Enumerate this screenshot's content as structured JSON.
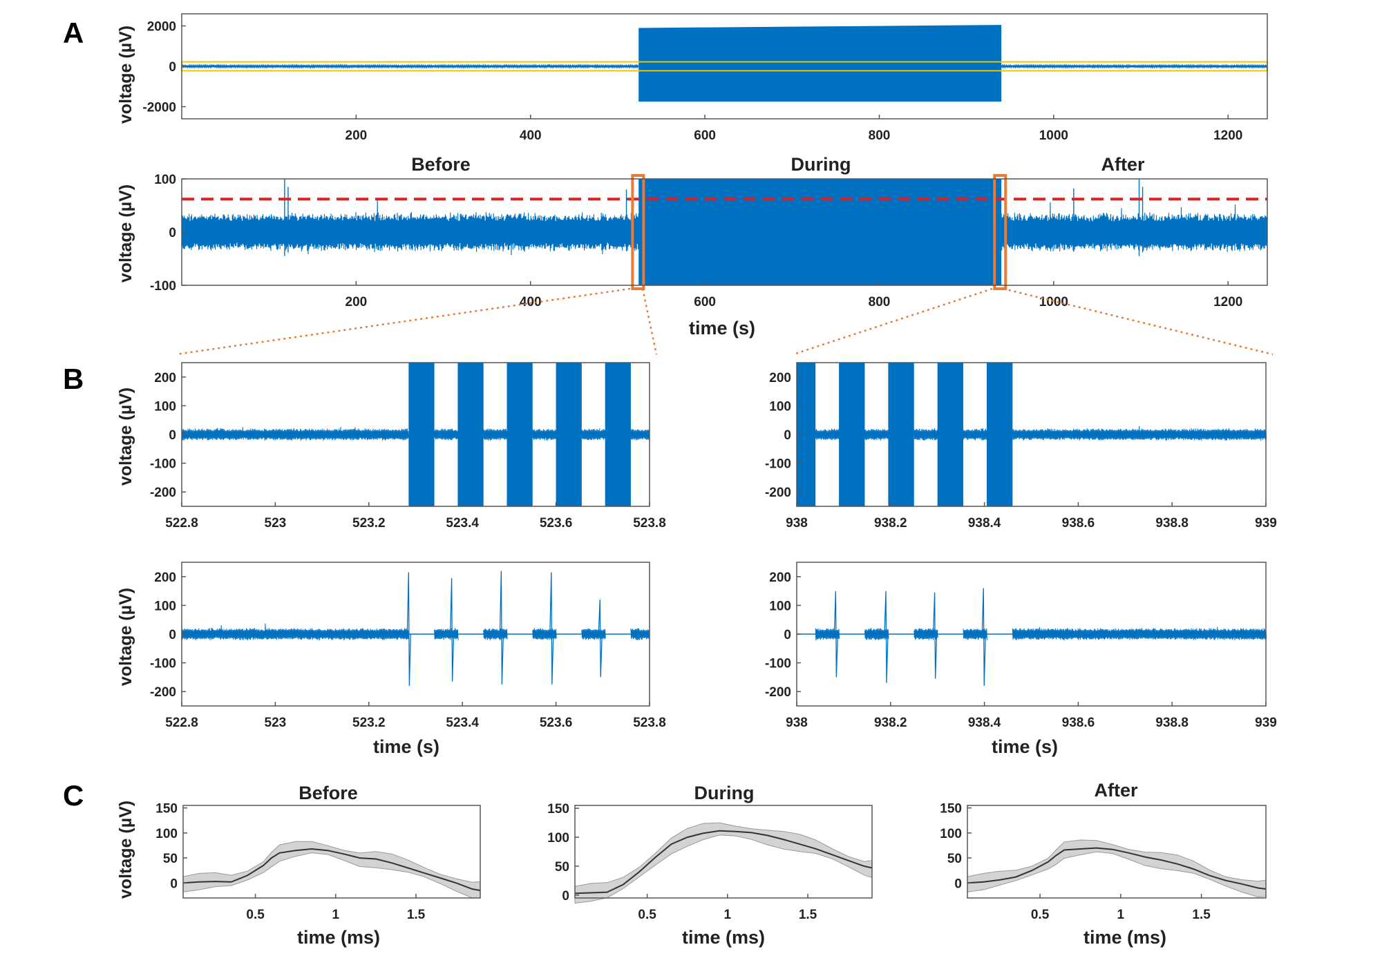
{
  "figure": {
    "panel_labels": [
      "A",
      "B",
      "C"
    ],
    "colors": {
      "signal": "#0070C0",
      "threshold": "#E02020",
      "zoom_box": "#E97B37",
      "yellow_box": "#F5C400",
      "mean_line": "#333333",
      "band": "#D3D3D3",
      "axes": "#555555"
    }
  },
  "chart_data": [
    {
      "id": "A1",
      "type": "line",
      "title": "",
      "xlabel": "",
      "ylabel": "voltage (µV)",
      "xlim": [
        0,
        1245
      ],
      "ylim": [
        -2600,
        2600
      ],
      "xticks": [
        200,
        400,
        600,
        800,
        1000,
        1200
      ],
      "yticks": [
        -2000,
        0,
        2000
      ],
      "yticklabels": [
        "-2000",
        "0",
        "2000"
      ],
      "segments": [
        {
          "name": "before",
          "x": [
            0,
            524
          ],
          "amplitude": 60
        },
        {
          "name": "during",
          "x": [
            524,
            940
          ],
          "y_low": -1750,
          "y_high_start": 1900,
          "y_high_end": 2050
        },
        {
          "name": "after",
          "x": [
            940,
            1245
          ],
          "amplitude": 60
        }
      ],
      "highlight_box_y": [
        -220,
        220
      ]
    },
    {
      "id": "A2",
      "type": "line",
      "ylabel": "voltage (µV)",
      "xlabel": "time (s)",
      "xlim": [
        0,
        1245
      ],
      "ylim": [
        -100,
        100
      ],
      "xticks": [
        200,
        400,
        600,
        800,
        1000,
        1200
      ],
      "yticks": [
        -100,
        0,
        100
      ],
      "yticklabels": [
        "-100",
        "0",
        "100"
      ],
      "segments": [
        {
          "name": "before",
          "x": [
            0,
            524
          ],
          "amplitude": 38
        },
        {
          "name": "during",
          "x": [
            524,
            940
          ],
          "amplitude": 100
        },
        {
          "name": "after",
          "x": [
            940,
            1245
          ],
          "amplitude": 38
        }
      ],
      "threshold": 62,
      "section_labels": [
        {
          "text": "Before",
          "x": 298
        },
        {
          "text": "During",
          "x": 733
        },
        {
          "text": "After",
          "x": 1080
        }
      ],
      "zoom_boxes": [
        [
          522.8,
          523.8
        ],
        [
          938,
          939
        ]
      ]
    },
    {
      "id": "B1",
      "type": "line",
      "ylabel": "voltage (µV)",
      "xlim": [
        522.8,
        523.8
      ],
      "ylim": [
        -250,
        250
      ],
      "xticks": [
        522.8,
        523,
        523.2,
        523.4,
        523.6,
        523.8
      ],
      "xticklabels": [
        "522.8",
        "523",
        "523.2",
        "523.4",
        "523.6",
        "523.8"
      ],
      "yticks": [
        -200,
        -100,
        0,
        100,
        200
      ],
      "yticklabels": [
        "-200",
        "-100",
        "0",
        "100",
        "200"
      ],
      "noise_amplitude": 22,
      "bursts": [
        [
          523.285,
          523.34
        ],
        [
          523.39,
          523.445
        ],
        [
          523.495,
          523.55
        ],
        [
          523.6,
          523.655
        ],
        [
          523.705,
          523.76
        ]
      ]
    },
    {
      "id": "B2",
      "type": "line",
      "ylabel": "voltage (µV)",
      "xlim": [
        938,
        939
      ],
      "ylim": [
        -250,
        250
      ],
      "xticks": [
        938,
        938.2,
        938.4,
        938.6,
        938.8,
        939
      ],
      "xticklabels": [
        "938",
        "938.2",
        "938.4",
        "938.6",
        "938.8",
        "939"
      ],
      "yticks": [
        -200,
        -100,
        0,
        100,
        200
      ],
      "yticklabels": [
        "-200",
        "-100",
        "0",
        "100",
        "200"
      ],
      "noise_amplitude": 22,
      "bursts": [
        [
          938.0,
          938.04
        ],
        [
          938.09,
          938.145
        ],
        [
          938.195,
          938.25
        ],
        [
          938.3,
          938.355
        ],
        [
          938.405,
          938.46
        ]
      ]
    },
    {
      "id": "B3",
      "type": "line",
      "ylabel": "voltage (µV)",
      "xlabel": "time (s)",
      "xlim": [
        522.8,
        523.8
      ],
      "ylim": [
        -250,
        250
      ],
      "xticks": [
        522.8,
        523,
        523.2,
        523.4,
        523.6,
        523.8
      ],
      "xticklabels": [
        "522.8",
        "523",
        "523.2",
        "523.4",
        "523.6",
        "523.8"
      ],
      "yticks": [
        -200,
        -100,
        0,
        100,
        200
      ],
      "yticklabels": [
        "-200",
        "-100",
        "0",
        "100",
        "200"
      ],
      "noise_amplitude": 22,
      "blanked": [
        [
          523.285,
          523.34
        ],
        [
          523.39,
          523.445
        ],
        [
          523.495,
          523.55
        ],
        [
          523.6,
          523.655
        ],
        [
          523.705,
          523.76
        ]
      ],
      "spikes": [
        {
          "x": 523.285,
          "max": 215,
          "min": -180
        },
        {
          "x": 523.377,
          "max": 195,
          "min": -165
        },
        {
          "x": 523.483,
          "max": 220,
          "min": -175
        },
        {
          "x": 523.59,
          "max": 215,
          "min": -175
        },
        {
          "x": 523.694,
          "max": 120,
          "min": -150
        }
      ]
    },
    {
      "id": "B4",
      "type": "line",
      "ylabel": "voltage (µV)",
      "xlabel": "time (s)",
      "xlim": [
        938,
        939
      ],
      "ylim": [
        -250,
        250
      ],
      "xticks": [
        938,
        938.2,
        938.4,
        938.6,
        938.8,
        939
      ],
      "xticklabels": [
        "938",
        "938.2",
        "938.4",
        "938.6",
        "938.8",
        "939"
      ],
      "yticks": [
        -200,
        -100,
        0,
        100,
        200
      ],
      "yticklabels": [
        "-200",
        "-100",
        "0",
        "100",
        "200"
      ],
      "noise_amplitude": 22,
      "blanked": [
        [
          938.0,
          938.04
        ],
        [
          938.09,
          938.145
        ],
        [
          938.195,
          938.25
        ],
        [
          938.3,
          938.355
        ],
        [
          938.405,
          938.46
        ]
      ],
      "spikes": [
        {
          "x": 938.083,
          "max": 150,
          "min": -150
        },
        {
          "x": 938.19,
          "max": 150,
          "min": -170
        },
        {
          "x": 938.294,
          "max": 145,
          "min": -155
        },
        {
          "x": 938.398,
          "max": 160,
          "min": -180
        }
      ]
    },
    {
      "id": "C1",
      "type": "area",
      "title": "Before",
      "ylabel": "voltage (µV)",
      "xlabel": "time (ms)",
      "xlim": [
        0.05,
        1.9
      ],
      "ylim": [
        -30,
        155
      ],
      "xticks": [
        0.5,
        1,
        1.5
      ],
      "xticklabels": [
        "0.5",
        "1",
        "1.5"
      ],
      "yticks": [
        0,
        50,
        100,
        150
      ],
      "yticklabels": [
        "0",
        "50",
        "100",
        "150"
      ],
      "x": [
        0.05,
        0.15,
        0.25,
        0.35,
        0.45,
        0.55,
        0.6,
        0.65,
        0.75,
        0.85,
        0.95,
        1.05,
        1.15,
        1.25,
        1.35,
        1.45,
        1.55,
        1.65,
        1.75,
        1.85,
        1.9
      ],
      "mean": [
        0,
        2,
        3,
        2,
        15,
        35,
        50,
        60,
        65,
        68,
        65,
        58,
        50,
        48,
        40,
        30,
        20,
        10,
        0,
        -12,
        -15
      ],
      "band": 18
    },
    {
      "id": "C2",
      "type": "area",
      "title": "During",
      "xlabel": "time (ms)",
      "xlim": [
        0.05,
        1.9
      ],
      "ylim": [
        -5,
        155
      ],
      "xticks": [
        0.5,
        1,
        1.5
      ],
      "xticklabels": [
        "0.5",
        "1",
        "1.5"
      ],
      "yticks": [
        0,
        50,
        100,
        150
      ],
      "yticklabels": [
        "0",
        "50",
        "100",
        "150"
      ],
      "x": [
        0.05,
        0.15,
        0.25,
        0.35,
        0.45,
        0.55,
        0.65,
        0.75,
        0.85,
        0.95,
        1.05,
        1.15,
        1.25,
        1.35,
        1.45,
        1.55,
        1.65,
        1.75,
        1.85,
        1.9
      ],
      "mean": [
        3,
        4,
        5,
        18,
        40,
        65,
        88,
        100,
        107,
        111,
        110,
        108,
        103,
        96,
        88,
        80,
        70,
        60,
        50,
        47
      ],
      "band": 17
    },
    {
      "id": "C3",
      "type": "area",
      "title": "After",
      "xlabel": "time (ms)",
      "xlim": [
        0.05,
        1.9
      ],
      "ylim": [
        -30,
        155
      ],
      "xticks": [
        0.5,
        1,
        1.5
      ],
      "xticklabels": [
        "0.5",
        "1",
        "1.5"
      ],
      "yticks": [
        0,
        50,
        100,
        150
      ],
      "yticklabels": [
        "0",
        "50",
        "100",
        "150"
      ],
      "x": [
        0.05,
        0.15,
        0.25,
        0.35,
        0.45,
        0.55,
        0.6,
        0.65,
        0.75,
        0.85,
        0.95,
        1.05,
        1.15,
        1.25,
        1.35,
        1.45,
        1.55,
        1.65,
        1.75,
        1.85,
        1.9
      ],
      "mean": [
        0,
        2,
        6,
        12,
        25,
        42,
        55,
        66,
        68,
        70,
        67,
        60,
        52,
        46,
        38,
        28,
        15,
        5,
        -2,
        -10,
        -12
      ],
      "band": 18
    }
  ]
}
